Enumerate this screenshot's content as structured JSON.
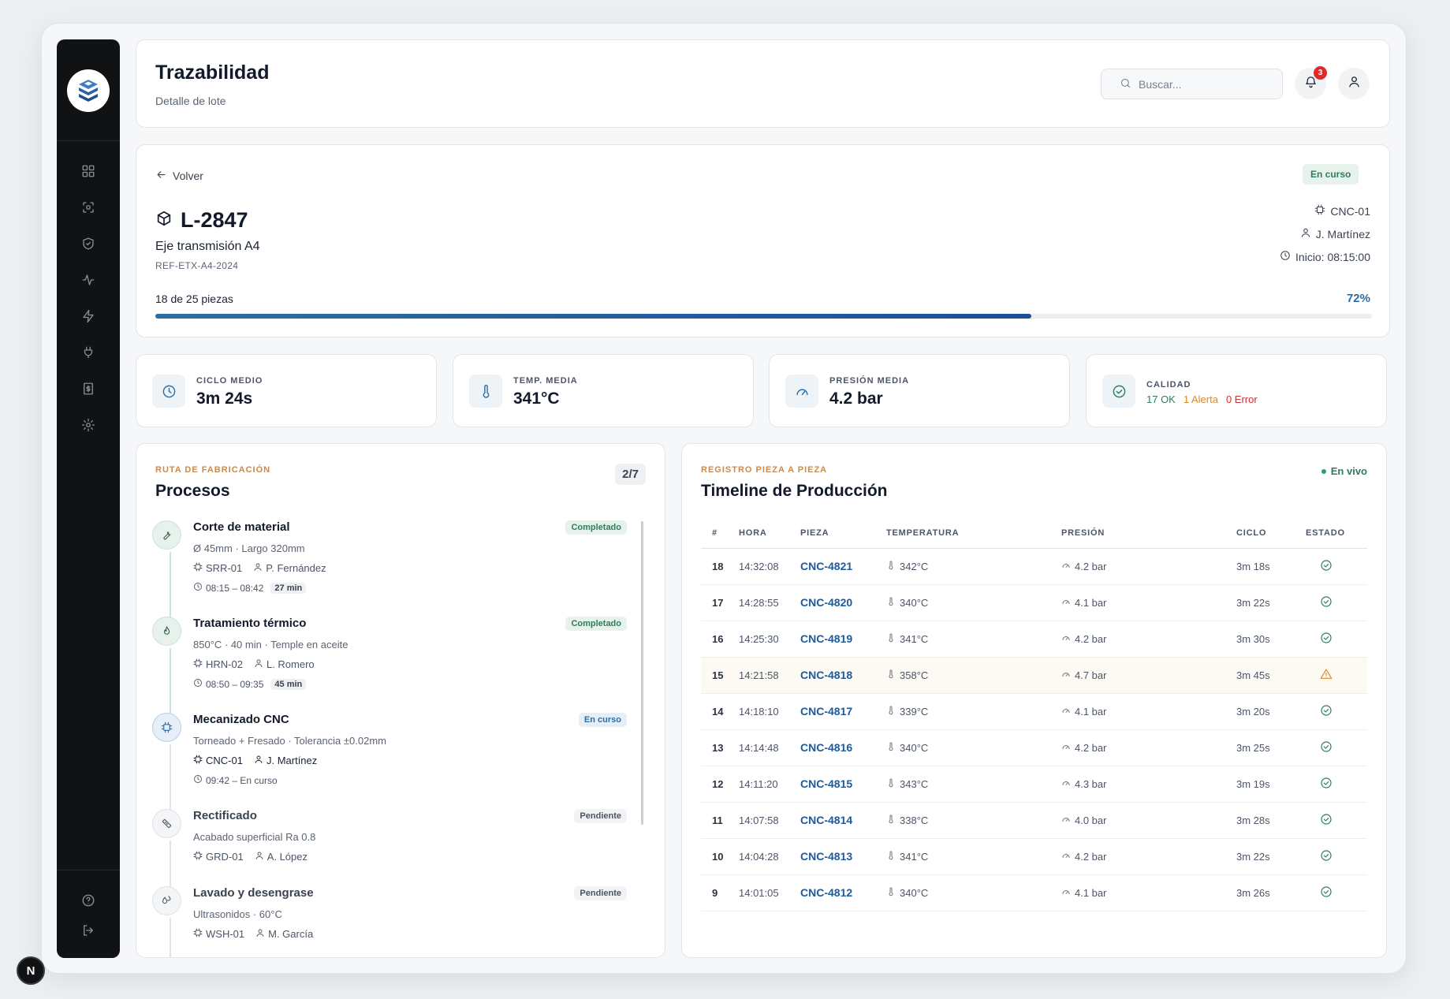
{
  "header": {
    "title": "Trazabilidad",
    "subtitle": "Detalle de lote",
    "search_placeholder": "Buscar...",
    "notification_count": "3"
  },
  "sidebar": {
    "items": [
      {
        "icon": "dashboard-icon"
      },
      {
        "icon": "scan-icon"
      },
      {
        "icon": "shield-icon"
      },
      {
        "icon": "activity-icon"
      },
      {
        "icon": "bolt-icon"
      },
      {
        "icon": "plug-icon"
      },
      {
        "icon": "receipt-icon"
      },
      {
        "icon": "gear-icon"
      }
    ],
    "bottom": [
      {
        "icon": "help-icon"
      },
      {
        "icon": "logout-icon"
      }
    ]
  },
  "batch": {
    "back_label": "Volver",
    "status": "En curso",
    "id": "L-2847",
    "product": "Eje transmisión A4",
    "reference": "REF-ETX-A4-2024",
    "machine": "CNC-01",
    "operator": "J. Martínez",
    "start": "Inicio: 08:15:00",
    "progress_text": "18 de 25 piezas",
    "progress_percent_label": "72%",
    "progress_value": 0.72
  },
  "stats": [
    {
      "label": "CICLO MEDIO",
      "value": "3m 24s",
      "icon": "clock-icon"
    },
    {
      "label": "TEMP. MEDIA",
      "value": "341°C",
      "icon": "thermometer-icon"
    },
    {
      "label": "PRESIÓN MEDIA",
      "value": "4.2 bar",
      "icon": "gauge-icon"
    }
  ],
  "quality": {
    "label": "CALIDAD",
    "ok": "17 OK",
    "alert": "1 Alerta",
    "error": "0 Error"
  },
  "processes": {
    "eyebrow": "RUTA DE FABRICACIÓN",
    "title": "Procesos",
    "count": "2/7",
    "items": [
      {
        "name": "Corte de material",
        "desc": "Ø 45mm · Largo 320mm",
        "machine": "SRR-01",
        "operator": "P. Fernández",
        "time": "08:15 – 08:42",
        "duration": "27 min",
        "status": "Completado"
      },
      {
        "name": "Tratamiento térmico",
        "desc": "850°C · 40 min · Temple en aceite",
        "machine": "HRN-02",
        "operator": "L. Romero",
        "time": "08:50 – 09:35",
        "duration": "45 min",
        "status": "Completado"
      },
      {
        "name": "Mecanizado CNC",
        "desc": "Torneado + Fresado · Tolerancia ±0.02mm",
        "machine": "CNC-01",
        "operator": "J. Martínez",
        "time": "09:42 – En curso",
        "duration": "",
        "status": "En curso"
      },
      {
        "name": "Rectificado",
        "desc": "Acabado superficial Ra 0.8",
        "machine": "GRD-01",
        "operator": "A. López",
        "time": "",
        "duration": "",
        "status": "Pendiente"
      },
      {
        "name": "Lavado y desengrase",
        "desc": "Ultrasonidos · 60°C",
        "machine": "WSH-01",
        "operator": "M. García",
        "time": "",
        "duration": "",
        "status": "Pendiente"
      }
    ]
  },
  "timeline": {
    "eyebrow": "REGISTRO PIEZA A PIEZA",
    "title": "Timeline de Producción",
    "live": "En vivo",
    "columns": [
      "#",
      "HORA",
      "PIEZA",
      "TEMPERATURA",
      "PRESIÓN",
      "CICLO",
      "ESTADO"
    ],
    "rows": [
      {
        "n": "18",
        "time": "14:32:08",
        "piece": "CNC-4821",
        "temp": "342°C",
        "pressure": "4.2 bar",
        "cycle": "3m 18s",
        "state": "ok"
      },
      {
        "n": "17",
        "time": "14:28:55",
        "piece": "CNC-4820",
        "temp": "340°C",
        "pressure": "4.1 bar",
        "cycle": "3m 22s",
        "state": "ok"
      },
      {
        "n": "16",
        "time": "14:25:30",
        "piece": "CNC-4819",
        "temp": "341°C",
        "pressure": "4.2 bar",
        "cycle": "3m 30s",
        "state": "ok"
      },
      {
        "n": "15",
        "time": "14:21:58",
        "piece": "CNC-4818",
        "temp": "358°C",
        "pressure": "4.7 bar",
        "cycle": "3m 45s",
        "state": "alert"
      },
      {
        "n": "14",
        "time": "14:18:10",
        "piece": "CNC-4817",
        "temp": "339°C",
        "pressure": "4.1 bar",
        "cycle": "3m 20s",
        "state": "ok"
      },
      {
        "n": "13",
        "time": "14:14:48",
        "piece": "CNC-4816",
        "temp": "340°C",
        "pressure": "4.2 bar",
        "cycle": "3m 25s",
        "state": "ok"
      },
      {
        "n": "12",
        "time": "14:11:20",
        "piece": "CNC-4815",
        "temp": "343°C",
        "pressure": "4.3 bar",
        "cycle": "3m 19s",
        "state": "ok"
      },
      {
        "n": "11",
        "time": "14:07:58",
        "piece": "CNC-4814",
        "temp": "338°C",
        "pressure": "4.0 bar",
        "cycle": "3m 28s",
        "state": "ok"
      },
      {
        "n": "10",
        "time": "14:04:28",
        "piece": "CNC-4813",
        "temp": "341°C",
        "pressure": "4.2 bar",
        "cycle": "3m 22s",
        "state": "ok"
      },
      {
        "n": "9",
        "time": "14:01:05",
        "piece": "CNC-4812",
        "temp": "340°C",
        "pressure": "4.1 bar",
        "cycle": "3m 26s",
        "state": "ok"
      }
    ]
  },
  "colors": {
    "accent": "#1e5a9a",
    "ok": "#2e7d5b",
    "alert": "#d98a2b",
    "error": "#d32f2f",
    "sidebar": "#111214"
  }
}
